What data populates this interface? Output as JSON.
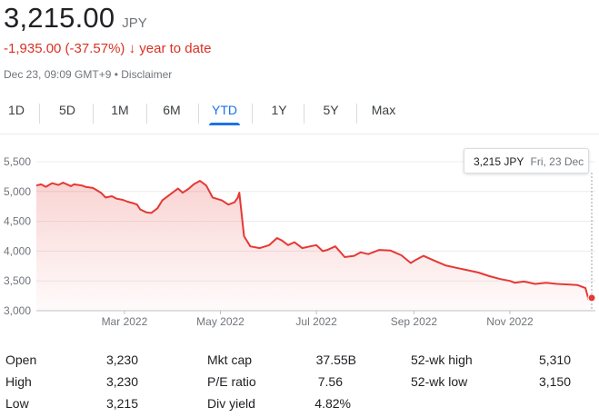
{
  "header": {
    "price": "3,215.00",
    "currency": "JPY",
    "change": "-1,935.00 (-37.57%)",
    "change_arrow": "↓",
    "change_period": "year to date",
    "meta": "Dec 23, 09:09 GMT+9 • Disclaimer",
    "negative_color": "#d93025"
  },
  "tabs": [
    {
      "label": "1D",
      "active": false
    },
    {
      "label": "5D",
      "active": false
    },
    {
      "label": "1M",
      "active": false
    },
    {
      "label": "6M",
      "active": false
    },
    {
      "label": "YTD",
      "active": true
    },
    {
      "label": "1Y",
      "active": false
    },
    {
      "label": "5Y",
      "active": false
    },
    {
      "label": "Max",
      "active": false
    }
  ],
  "tooltip": {
    "value": "3,215 JPY",
    "date": "Fri, 23 Dec"
  },
  "chart_data": {
    "type": "area",
    "line_color": "#e53935",
    "ylim": [
      3000,
      5600
    ],
    "yticks": [
      3000,
      3500,
      4000,
      4500,
      5000,
      5500
    ],
    "ytick_labels": [
      "3,000",
      "3,500",
      "4,000",
      "4,500",
      "5,000",
      "5,500"
    ],
    "xlim": [
      "2022-01-04",
      "2022-12-23"
    ],
    "xticks": [
      {
        "date": "2022-03-01",
        "label": "Mar 2022"
      },
      {
        "date": "2022-05-01",
        "label": "May 2022"
      },
      {
        "date": "2022-07-01",
        "label": "Jul 2022"
      },
      {
        "date": "2022-09-01",
        "label": "Sep 2022"
      },
      {
        "date": "2022-11-01",
        "label": "Nov 2022"
      }
    ],
    "grid": true,
    "x": [
      "2022-01-04",
      "2022-01-07",
      "2022-01-10",
      "2022-01-14",
      "2022-01-18",
      "2022-01-21",
      "2022-01-26",
      "2022-01-28",
      "2022-02-02",
      "2022-02-04",
      "2022-02-09",
      "2022-02-14",
      "2022-02-17",
      "2022-02-21",
      "2022-02-24",
      "2022-02-28",
      "2022-03-03",
      "2022-03-07",
      "2022-03-09",
      "2022-03-11",
      "2022-03-15",
      "2022-03-18",
      "2022-03-22",
      "2022-03-25",
      "2022-03-30",
      "2022-04-04",
      "2022-04-07",
      "2022-04-11",
      "2022-04-14",
      "2022-04-18",
      "2022-04-22",
      "2022-04-26",
      "2022-05-02",
      "2022-05-06",
      "2022-05-10",
      "2022-05-12",
      "2022-05-13",
      "2022-05-16",
      "2022-05-20",
      "2022-05-26",
      "2022-06-01",
      "2022-06-06",
      "2022-06-09",
      "2022-06-13",
      "2022-06-17",
      "2022-06-22",
      "2022-06-27",
      "2022-07-01",
      "2022-07-05",
      "2022-07-08",
      "2022-07-13",
      "2022-07-19",
      "2022-07-25",
      "2022-07-29",
      "2022-08-03",
      "2022-08-10",
      "2022-08-17",
      "2022-08-24",
      "2022-08-30",
      "2022-09-02",
      "2022-09-07",
      "2022-09-14",
      "2022-09-21",
      "2022-09-28",
      "2022-10-05",
      "2022-10-12",
      "2022-10-19",
      "2022-10-26",
      "2022-11-01",
      "2022-11-04",
      "2022-11-10",
      "2022-11-17",
      "2022-11-24",
      "2022-12-01",
      "2022-12-08",
      "2022-12-14",
      "2022-12-19",
      "2022-12-21",
      "2022-12-23"
    ],
    "series": [
      {
        "values": [
          5100,
          5120,
          5080,
          5140,
          5110,
          5150,
          5090,
          5120,
          5100,
          5080,
          5060,
          4980,
          4900,
          4920,
          4880,
          4860,
          4830,
          4800,
          4780,
          4700,
          4650,
          4640,
          4720,
          4850,
          4950,
          5050,
          4980,
          5050,
          5120,
          5180,
          5100,
          4900,
          4850,
          4780,
          4820,
          4900,
          4980,
          4250,
          4080,
          4050,
          4100,
          4220,
          4180,
          4100,
          4150,
          4050,
          4080,
          4100,
          4000,
          4020,
          4080,
          3900,
          3920,
          3980,
          3950,
          4020,
          4010,
          3930,
          3800,
          3850,
          3920,
          3840,
          3760,
          3720,
          3680,
          3640,
          3580,
          3530,
          3500,
          3470,
          3490,
          3450,
          3470,
          3450,
          3440,
          3430,
          3380,
          3190,
          3215
        ]
      }
    ],
    "last_point": {
      "x": "2022-12-23",
      "y": 3215
    }
  },
  "stats": {
    "col1": [
      {
        "label": "Open",
        "value": "3,230"
      },
      {
        "label": "High",
        "value": "3,230"
      },
      {
        "label": "Low",
        "value": "3,215"
      }
    ],
    "col2": [
      {
        "label": "Mkt cap",
        "value": "37.55B"
      },
      {
        "label": "P/E ratio",
        "value": "7.56"
      },
      {
        "label": "Div yield",
        "value": "4.82%"
      }
    ],
    "col3": [
      {
        "label": "52-wk high",
        "value": "5,310"
      },
      {
        "label": "52-wk low",
        "value": "3,150"
      }
    ]
  }
}
